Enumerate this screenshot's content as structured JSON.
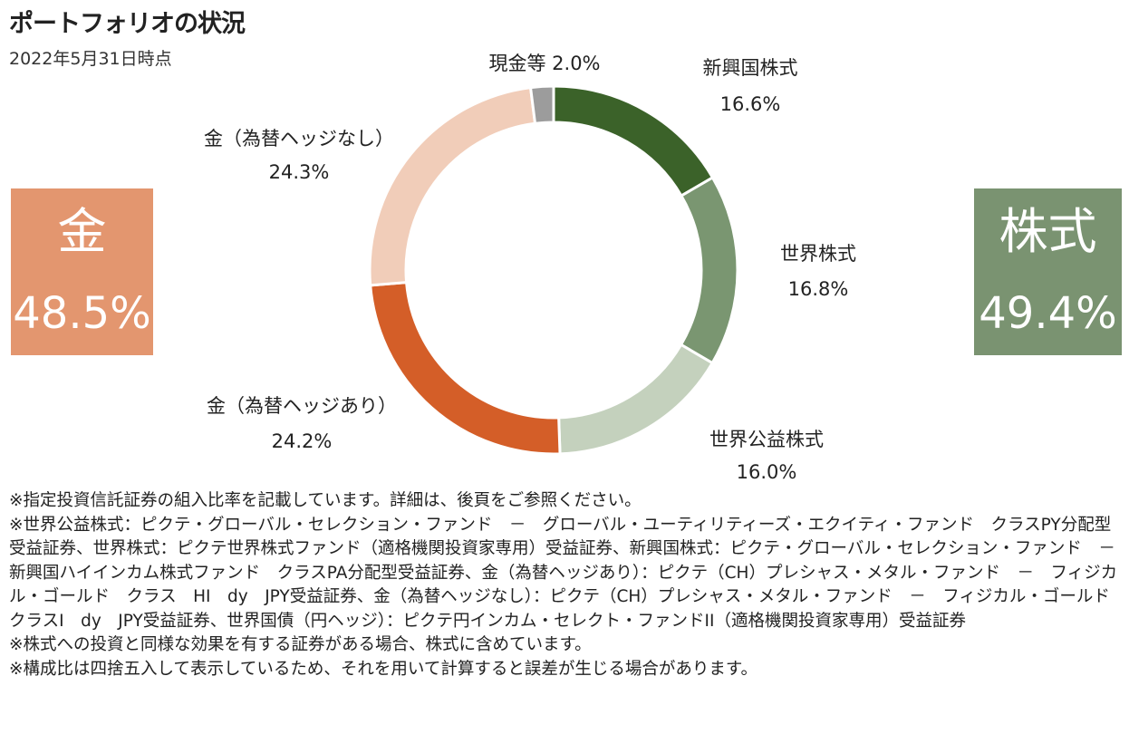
{
  "title": "ポートフォリオの状況",
  "as_of": "2022年5月31日時点",
  "summary": {
    "gold": {
      "label": "金",
      "value": "48.5%",
      "color": "#E3966F"
    },
    "stock": {
      "label": "株式",
      "value": "49.4%",
      "color": "#7A9371"
    }
  },
  "chart_data": {
    "type": "pie",
    "donut": true,
    "start": "top, clockwise",
    "slices": [
      {
        "name": "新興国株式",
        "value": 16.6,
        "value_label": "16.6%",
        "color": "#3B6229"
      },
      {
        "name": "世界株式",
        "value": 16.8,
        "value_label": "16.8%",
        "color": "#7A9671"
      },
      {
        "name": "世界公益株式",
        "value": 16.0,
        "value_label": "16.0%",
        "color": "#C4D1BD"
      },
      {
        "name": "金（為替ヘッジあり）",
        "value": 24.2,
        "value_label": "24.2%",
        "color": "#D45E28"
      },
      {
        "name": "金（為替ヘッジなし）",
        "value": 24.3,
        "value_label": "24.3%",
        "color": "#F1CDB9"
      },
      {
        "name": "現金等",
        "value": 2.0,
        "value_label": "2.0%",
        "color": "#9C9C9C"
      }
    ]
  },
  "notes": [
    "※指定投資信託証券の組入比率を記載しています。詳細は、後頁をご参照ください。",
    "※世界公益株式：ピクテ・グローバル・セレクション・ファンド　－　グローバル・ユーティリティーズ・エクイティ・ファンド　クラスPY分配型受益証券、世界株式：ピクテ世界株式ファンド（適格機関投資家専用）受益証券、新興国株式：ピクテ・グローバル・セレクション・ファンド　－　新興国ハイインカム株式ファンド　クラスPA分配型受益証券、金（為替ヘッジあり）：ピクテ（CH）プレシャス・メタル・ファンド　－　フィジカル・ゴールド　クラス　HI　dy　JPY受益証券、金（為替ヘッジなし）：ピクテ（CH）プレシャス・メタル・ファンド　－　フィジカル・ゴールド　クラスI　dy　JPY受益証券、世界国債（円ヘッジ）：ピクテ円インカム・セレクト・ファンドII（適格機関投資家専用）受益証券",
    "※株式への投資と同様な効果を有する証券がある場合、株式に含めています。",
    "※構成比は四捨五入して表示しているため、それを用いて計算すると誤差が生じる場合があります。"
  ]
}
